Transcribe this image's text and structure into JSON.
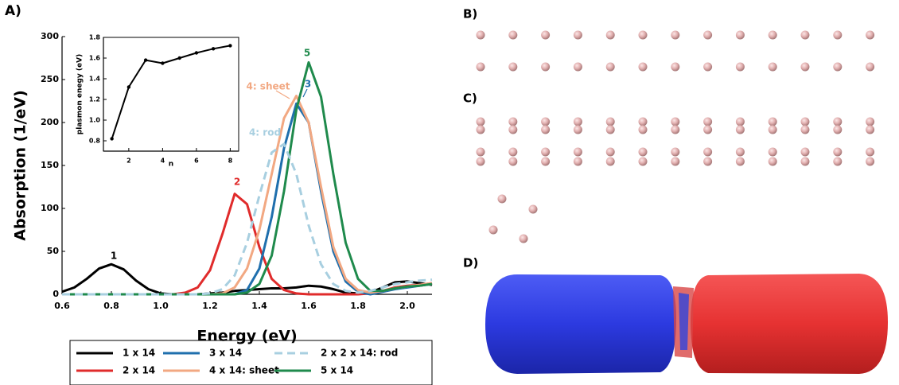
{
  "panel_labels": [
    "A)",
    "B)",
    "C)",
    "D)"
  ],
  "chart_data": [
    {
      "type": "line",
      "xlabel": "Energy (eV)",
      "ylabel": "Absorption (1/eV)",
      "x": [
        0.6,
        0.65,
        0.7,
        0.75,
        0.8,
        0.85,
        0.9,
        0.95,
        1.0,
        1.05,
        1.1,
        1.15,
        1.2,
        1.25,
        1.3,
        1.35,
        1.4,
        1.45,
        1.5,
        1.55,
        1.6,
        1.65,
        1.7,
        1.75,
        1.8,
        1.85,
        1.9,
        1.95,
        2.0,
        2.05,
        2.1
      ],
      "xlim": [
        0.6,
        2.1
      ],
      "xticks": [
        0.6,
        0.8,
        {
          "value": 1,
          "label": "1.0"
        },
        1.2,
        1.4,
        1.6,
        1.8,
        {
          "value": 2,
          "label": "2.0"
        }
      ],
      "ylim": [
        0,
        300
      ],
      "yticks": [
        0,
        50,
        100,
        150,
        200,
        250,
        300
      ],
      "series": [
        {
          "name": "1 x 14",
          "color": "#000000",
          "values": [
            3,
            8,
            18,
            30,
            35,
            29,
            16,
            6,
            1,
            0,
            0,
            0,
            1,
            2,
            4,
            5,
            6,
            7,
            7,
            8,
            10,
            9,
            6,
            2,
            1,
            2,
            8,
            14,
            15,
            13,
            11
          ]
        },
        {
          "name": "2 x 14",
          "color": "#e02b2b",
          "values": [
            0,
            0,
            0,
            0,
            0,
            0,
            0,
            0,
            0,
            0,
            2,
            8,
            28,
            70,
            117,
            105,
            55,
            18,
            5,
            1,
            0,
            0,
            0,
            0,
            0,
            1,
            4,
            8,
            10,
            11,
            13
          ]
        },
        {
          "name": "3 x 14",
          "color": "#1f6fad",
          "values": [
            0,
            0,
            0,
            0,
            0,
            0,
            0,
            0,
            0,
            0,
            0,
            0,
            0,
            0,
            0,
            5,
            30,
            90,
            170,
            222,
            200,
            120,
            50,
            15,
            3,
            0,
            3,
            6,
            8,
            10,
            12
          ]
        },
        {
          "name": "4 x 14: sheet",
          "color": "#f2a882",
          "values": [
            0,
            0,
            0,
            0,
            0,
            0,
            0,
            0,
            0,
            0,
            0,
            0,
            0,
            1,
            8,
            30,
            75,
            140,
            205,
            231,
            200,
            125,
            55,
            18,
            5,
            2,
            4,
            7,
            9,
            11,
            13
          ]
        },
        {
          "name": "5 x 14",
          "color": "#1f8a4c",
          "values": [
            0,
            0,
            0,
            0,
            0,
            0,
            0,
            0,
            0,
            0,
            0,
            0,
            0,
            0,
            0,
            2,
            12,
            45,
            120,
            215,
            270,
            230,
            140,
            60,
            18,
            4,
            4,
            7,
            9,
            10,
            12
          ]
        },
        {
          "name": "2 x 2 x 14: rod",
          "color": "#a8cfe0",
          "dashed": true,
          "values": [
            0,
            0,
            0,
            0,
            0,
            0,
            0,
            0,
            0,
            0,
            0,
            0,
            1,
            6,
            22,
            60,
            115,
            165,
            175,
            140,
            80,
            35,
            12,
            4,
            2,
            4,
            8,
            12,
            14,
            16,
            17
          ]
        }
      ],
      "annotations": [
        "1",
        "2",
        "3",
        "4: sheet",
        "4: rod",
        "5"
      ]
    },
    {
      "type": "line",
      "xlabel": "n",
      "ylabel": "plasmon enegy (eV)",
      "x": [
        1,
        2,
        3,
        4,
        5,
        6,
        7,
        8
      ],
      "values": [
        0.82,
        1.32,
        1.58,
        1.55,
        1.6,
        1.65,
        1.69,
        1.72
      ],
      "color": "#000000",
      "xlim": [
        0.5,
        8.5
      ],
      "xticks": [
        2,
        4,
        6,
        8
      ],
      "ylim": [
        0.7,
        1.8
      ],
      "yticks": [
        0.8,
        {
          "value": 1,
          "label": "1.0"
        },
        1.2,
        1.4,
        1.6,
        1.8
      ]
    }
  ]
}
